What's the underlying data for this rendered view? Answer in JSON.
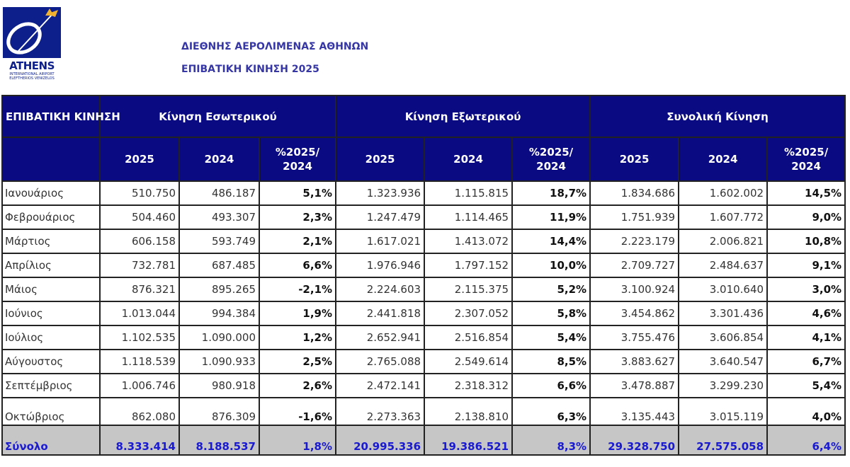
{
  "logo": {
    "name": "ATHENS",
    "line1": "INTERNATIONAL AIRPORT",
    "line2": "ELEFTHERIOS VENIZELOS"
  },
  "title": {
    "line1": "ΔΙΕΘΝΗΣ ΑΕΡΟΛΙΜΕΝΑΣ ΑΘΗΝΩΝ",
    "line2": "ΕΠΙΒΑΤΙΚΗ ΚΙΝΗΣΗ 2025"
  },
  "table": {
    "corner": "ΕΠΙΒΑΤΙΚΗ ΚΙΝΗΣΗ",
    "groups": [
      "Κίνηση Εσωτερικού",
      "Κίνηση Εξωτερικού",
      "Συνολική Κίνηση"
    ],
    "subheaders": [
      "2025",
      "2024",
      "%2025/ 2024",
      "2025",
      "2024",
      "%2025/ 2024",
      "2025",
      "2024",
      "%2025/ 2024"
    ],
    "rows": [
      [
        "Ιανουάριος",
        "510.750",
        "486.187",
        "5,1%",
        "1.323.936",
        "1.115.815",
        "18,7%",
        "1.834.686",
        "1.602.002",
        "14,5%"
      ],
      [
        "Φεβρουάριος",
        "504.460",
        "493.307",
        "2,3%",
        "1.247.479",
        "1.114.465",
        "11,9%",
        "1.751.939",
        "1.607.772",
        "9,0%"
      ],
      [
        "Μάρτιος",
        "606.158",
        "593.749",
        "2,1%",
        "1.617.021",
        "1.413.072",
        "14,4%",
        "2.223.179",
        "2.006.821",
        "10,8%"
      ],
      [
        "Απρίλιος",
        "732.781",
        "687.485",
        "6,6%",
        "1.976.946",
        "1.797.152",
        "10,0%",
        "2.709.727",
        "2.484.637",
        "9,1%"
      ],
      [
        "Μάιος",
        "876.321",
        "895.265",
        "-2,1%",
        "2.224.603",
        "2.115.375",
        "5,2%",
        "3.100.924",
        "3.010.640",
        "3,0%"
      ],
      [
        "Ιούνιος",
        "1.013.044",
        "994.384",
        "1,9%",
        "2.441.818",
        "2.307.052",
        "5,8%",
        "3.454.862",
        "3.301.436",
        "4,6%"
      ],
      [
        "Ιούλιος",
        "1.102.535",
        "1.090.000",
        "1,2%",
        "2.652.941",
        "2.516.854",
        "5,4%",
        "3.755.476",
        "3.606.854",
        "4,1%"
      ],
      [
        "Αύγουστος",
        "1.118.539",
        "1.090.933",
        "2,5%",
        "2.765.088",
        "2.549.614",
        "8,5%",
        "3.883.627",
        "3.640.547",
        "6,7%"
      ],
      [
        "Σεπτέμβριος",
        "1.006.746",
        "980.918",
        "2,6%",
        "2.472.141",
        "2.318.312",
        "6,6%",
        "3.478.887",
        "3.299.230",
        "5,4%"
      ],
      [
        "Οκτώβριος",
        "862.080",
        "876.309",
        "-1,6%",
        "2.273.363",
        "2.138.810",
        "6,3%",
        "3.135.443",
        "3.015.119",
        "4,0%"
      ]
    ],
    "total": [
      "Σύνολο",
      "8.333.414",
      "8.188.537",
      "1,8%",
      "20.995.336",
      "19.386.521",
      "8,3%",
      "29.328.750",
      "27.575.058",
      "6,4%"
    ]
  }
}
